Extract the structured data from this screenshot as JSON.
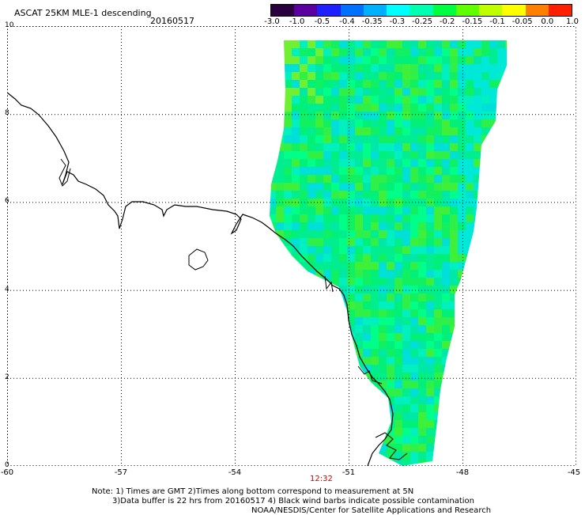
{
  "title": "ASCAT 25KM MLE-1 descending",
  "date": "20160517",
  "colorbar": {
    "labels": [
      "-3.0",
      "-1.0",
      "-0.5",
      "-0.4",
      "-0.35",
      "-0.3",
      "-0.25",
      "-0.2",
      "-0.15",
      "-0.1",
      "-0.05",
      "0.0",
      "1.0"
    ],
    "colors": [
      "#2a003f",
      "#5a00a0",
      "#2020ff",
      "#0070ff",
      "#00b0ff",
      "#00ffff",
      "#00ffb0",
      "#00ff40",
      "#60ff00",
      "#c0ff00",
      "#ffff00",
      "#ff8000",
      "#ff2000"
    ]
  },
  "latitude_labels": [
    "10",
    "8",
    "6",
    "4",
    "2",
    "0"
  ],
  "longitude_labels": [
    "-60",
    "-57",
    "-54",
    "-51",
    "-48",
    "-45"
  ],
  "pass_time": "12:32",
  "notes": {
    "line1": "Note: 1) Times are GMT 2)Times along bottom correspond to measurement at 5N",
    "line2": "3)Data buffer is 22 hrs from 20160517 4) Black wind barbs indicate possible contamination",
    "line3": "NOAA/NESDIS/Center for Satellite Applications and Research"
  },
  "colors": {
    "grid": "#000000",
    "coast": "#000000",
    "swath_main": "#00ee70"
  }
}
